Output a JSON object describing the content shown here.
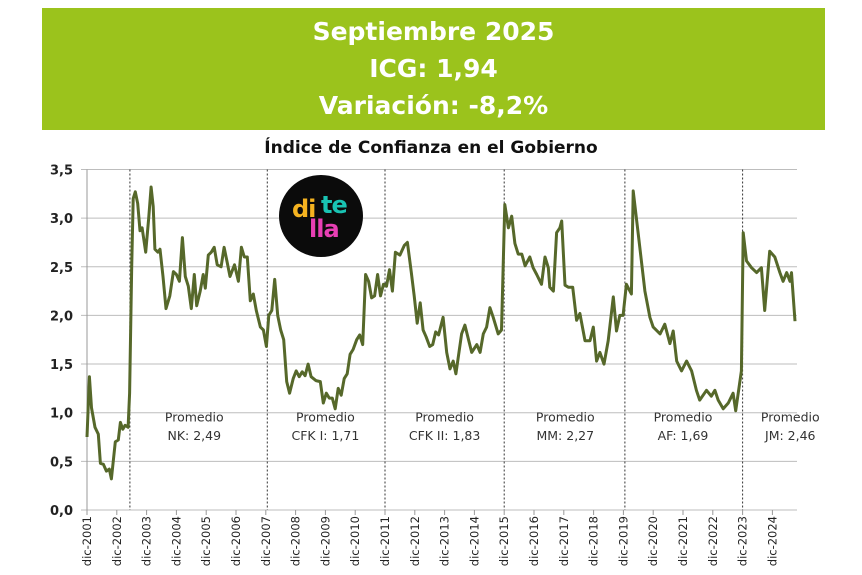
{
  "banner": {
    "line1": "Septiembre 2025",
    "line2": "ICG: 1,94",
    "line3": "Variación: -8,2%"
  },
  "logo": {
    "text1": "di",
    "text2": "te",
    "text3": "lla",
    "colors": [
      "#f5b320",
      "#19c3b3",
      "#e83fb4"
    ]
  },
  "chart_data": {
    "type": "line",
    "title": "Índice de Confianza en el Gobierno",
    "xlabel": "",
    "ylabel": "",
    "ylim": [
      0,
      3.5
    ],
    "yticks": [
      "0,0",
      "0,5",
      "1,0",
      "1,5",
      "2,0",
      "2,5",
      "3,0",
      "3,5"
    ],
    "xticks": [
      "dic-2001",
      "dic-2002",
      "dic-2003",
      "dic-2004",
      "dic-2005",
      "dic-2006",
      "dic-2007",
      "dic-2008",
      "dic-2009",
      "dic-2010",
      "dic-2011",
      "dic-2012",
      "dic-2013",
      "dic-2014",
      "dic-2015",
      "dic-2016",
      "dic-2017",
      "dic-2018",
      "dic-2019",
      "dic-2020",
      "dic-2021",
      "dic-2022",
      "dic-2023",
      "dic-2024"
    ],
    "x_unit": "years since dic-2001",
    "grid": true,
    "line_color": "#56682a",
    "periods": [
      {
        "start": 1.44,
        "label1": "Promedio",
        "label2": "NK: 2,49",
        "center": 3.6
      },
      {
        "start": 6.05,
        "label1": "Promedio",
        "label2": "CFK I: 1,71",
        "center": 8.0
      },
      {
        "start": 10.0,
        "label1": "Promedio",
        "label2": "CFK II: 1,83",
        "center": 12.0
      },
      {
        "start": 14.0,
        "label1": "Promedio",
        "label2": "MM: 2,27",
        "center": 16.05
      },
      {
        "start": 18.05,
        "label1": "Promedio",
        "label2": "AF: 1,69",
        "center": 20.0
      },
      {
        "start": 22.0,
        "label1": "Promedio",
        "label2": "JM: 2,46",
        "center": 23.6
      }
    ],
    "series": [
      {
        "name": "ICG",
        "points": [
          [
            0,
            0.75
          ],
          [
            0.08,
            1.37
          ],
          [
            0.15,
            1.05
          ],
          [
            0.27,
            0.85
          ],
          [
            0.38,
            0.78
          ],
          [
            0.45,
            0.48
          ],
          [
            0.55,
            0.47
          ],
          [
            0.65,
            0.4
          ],
          [
            0.75,
            0.42
          ],
          [
            0.82,
            0.32
          ],
          [
            0.95,
            0.7
          ],
          [
            1.05,
            0.72
          ],
          [
            1.12,
            0.9
          ],
          [
            1.2,
            0.83
          ],
          [
            1.28,
            0.87
          ],
          [
            1.38,
            0.85
          ],
          [
            1.43,
            1.2
          ],
          [
            1.5,
            2.5
          ],
          [
            1.55,
            3.2
          ],
          [
            1.62,
            3.27
          ],
          [
            1.7,
            3.15
          ],
          [
            1.78,
            2.87
          ],
          [
            1.85,
            2.9
          ],
          [
            1.97,
            2.65
          ],
          [
            2.07,
            3.0
          ],
          [
            2.15,
            3.32
          ],
          [
            2.22,
            3.12
          ],
          [
            2.28,
            2.68
          ],
          [
            2.38,
            2.65
          ],
          [
            2.45,
            2.68
          ],
          [
            2.55,
            2.4
          ],
          [
            2.65,
            2.07
          ],
          [
            2.78,
            2.2
          ],
          [
            2.9,
            2.45
          ],
          [
            3.0,
            2.42
          ],
          [
            3.1,
            2.35
          ],
          [
            3.2,
            2.8
          ],
          [
            3.3,
            2.4
          ],
          [
            3.4,
            2.3
          ],
          [
            3.5,
            2.07
          ],
          [
            3.6,
            2.42
          ],
          [
            3.68,
            2.1
          ],
          [
            3.8,
            2.25
          ],
          [
            3.9,
            2.42
          ],
          [
            3.97,
            2.28
          ],
          [
            4.07,
            2.62
          ],
          [
            4.17,
            2.65
          ],
          [
            4.27,
            2.7
          ],
          [
            4.37,
            2.52
          ],
          [
            4.5,
            2.5
          ],
          [
            4.6,
            2.7
          ],
          [
            4.7,
            2.55
          ],
          [
            4.8,
            2.4
          ],
          [
            4.95,
            2.52
          ],
          [
            5.08,
            2.35
          ],
          [
            5.18,
            2.7
          ],
          [
            5.28,
            2.6
          ],
          [
            5.38,
            2.6
          ],
          [
            5.48,
            2.15
          ],
          [
            5.58,
            2.22
          ],
          [
            5.68,
            2.05
          ],
          [
            5.82,
            1.88
          ],
          [
            5.92,
            1.85
          ],
          [
            6.02,
            1.68
          ],
          [
            6.1,
            2.0
          ],
          [
            6.2,
            2.05
          ],
          [
            6.3,
            2.37
          ],
          [
            6.4,
            2.0
          ],
          [
            6.5,
            1.85
          ],
          [
            6.6,
            1.75
          ],
          [
            6.7,
            1.32
          ],
          [
            6.8,
            1.2
          ],
          [
            6.92,
            1.35
          ],
          [
            7.02,
            1.43
          ],
          [
            7.12,
            1.37
          ],
          [
            7.22,
            1.42
          ],
          [
            7.32,
            1.38
          ],
          [
            7.42,
            1.5
          ],
          [
            7.52,
            1.37
          ],
          [
            7.68,
            1.33
          ],
          [
            7.83,
            1.32
          ],
          [
            7.93,
            1.1
          ],
          [
            8.03,
            1.2
          ],
          [
            8.13,
            1.15
          ],
          [
            8.23,
            1.15
          ],
          [
            8.33,
            1.04
          ],
          [
            8.43,
            1.25
          ],
          [
            8.53,
            1.18
          ],
          [
            8.63,
            1.35
          ],
          [
            8.73,
            1.4
          ],
          [
            8.83,
            1.6
          ],
          [
            8.93,
            1.65
          ],
          [
            9.05,
            1.75
          ],
          [
            9.15,
            1.8
          ],
          [
            9.25,
            1.7
          ],
          [
            9.35,
            2.42
          ],
          [
            9.45,
            2.35
          ],
          [
            9.55,
            2.18
          ],
          [
            9.65,
            2.2
          ],
          [
            9.75,
            2.42
          ],
          [
            9.85,
            2.2
          ],
          [
            9.95,
            2.32
          ],
          [
            10.05,
            2.3
          ],
          [
            10.15,
            2.47
          ],
          [
            10.25,
            2.25
          ],
          [
            10.35,
            2.65
          ],
          [
            10.5,
            2.62
          ],
          [
            10.65,
            2.72
          ],
          [
            10.75,
            2.75
          ],
          [
            10.88,
            2.45
          ],
          [
            10.98,
            2.2
          ],
          [
            11.08,
            1.92
          ],
          [
            11.18,
            2.13
          ],
          [
            11.28,
            1.85
          ],
          [
            11.38,
            1.78
          ],
          [
            11.5,
            1.68
          ],
          [
            11.6,
            1.7
          ],
          [
            11.7,
            1.83
          ],
          [
            11.8,
            1.8
          ],
          [
            11.95,
            1.98
          ],
          [
            12.07,
            1.62
          ],
          [
            12.18,
            1.45
          ],
          [
            12.29,
            1.53
          ],
          [
            12.38,
            1.4
          ],
          [
            12.57,
            1.81
          ],
          [
            12.68,
            1.9
          ],
          [
            12.91,
            1.62
          ],
          [
            13.08,
            1.7
          ],
          [
            13.19,
            1.62
          ],
          [
            13.3,
            1.81
          ],
          [
            13.41,
            1.88
          ],
          [
            13.52,
            2.08
          ],
          [
            13.63,
            1.98
          ],
          [
            13.8,
            1.81
          ],
          [
            13.91,
            1.85
          ],
          [
            14.02,
            3.14
          ],
          [
            14.14,
            2.9
          ],
          [
            14.25,
            3.02
          ],
          [
            14.36,
            2.74
          ],
          [
            14.47,
            2.63
          ],
          [
            14.59,
            2.63
          ],
          [
            14.7,
            2.51
          ],
          [
            14.86,
            2.6
          ],
          [
            14.97,
            2.49
          ],
          [
            15.09,
            2.42
          ],
          [
            15.25,
            2.32
          ],
          [
            15.37,
            2.6
          ],
          [
            15.48,
            2.49
          ],
          [
            15.53,
            2.29
          ],
          [
            15.65,
            2.25
          ],
          [
            15.76,
            2.85
          ],
          [
            15.87,
            2.9
          ],
          [
            15.93,
            2.97
          ],
          [
            16.04,
            2.31
          ],
          [
            16.15,
            2.29
          ],
          [
            16.3,
            2.29
          ],
          [
            16.43,
            1.95
          ],
          [
            16.54,
            2.02
          ],
          [
            16.71,
            1.74
          ],
          [
            16.88,
            1.74
          ],
          [
            16.99,
            1.88
          ],
          [
            17.1,
            1.53
          ],
          [
            17.21,
            1.62
          ],
          [
            17.35,
            1.5
          ],
          [
            17.49,
            1.74
          ],
          [
            17.66,
            2.19
          ],
          [
            17.77,
            1.84
          ],
          [
            17.88,
            2.0
          ],
          [
            17.99,
            2.0
          ],
          [
            18.1,
            2.32
          ],
          [
            18.27,
            2.22
          ],
          [
            18.33,
            3.28
          ],
          [
            18.55,
            2.7
          ],
          [
            18.72,
            2.25
          ],
          [
            18.89,
            1.98
          ],
          [
            19.0,
            1.88
          ],
          [
            19.23,
            1.81
          ],
          [
            19.39,
            1.91
          ],
          [
            19.56,
            1.71
          ],
          [
            19.67,
            1.84
          ],
          [
            19.79,
            1.53
          ],
          [
            19.95,
            1.43
          ],
          [
            20.12,
            1.53
          ],
          [
            20.29,
            1.43
          ],
          [
            20.45,
            1.23
          ],
          [
            20.56,
            1.13
          ],
          [
            20.79,
            1.23
          ],
          [
            20.95,
            1.17
          ],
          [
            21.07,
            1.23
          ],
          [
            21.18,
            1.13
          ],
          [
            21.35,
            1.04
          ],
          [
            21.52,
            1.1
          ],
          [
            21.68,
            1.2
          ],
          [
            21.77,
            1.02
          ],
          [
            21.96,
            1.43
          ],
          [
            22.02,
            2.85
          ],
          [
            22.13,
            2.56
          ],
          [
            22.3,
            2.49
          ],
          [
            22.47,
            2.44
          ],
          [
            22.63,
            2.49
          ],
          [
            22.74,
            2.05
          ],
          [
            22.91,
            2.66
          ],
          [
            23.08,
            2.6
          ],
          [
            23.25,
            2.44
          ],
          [
            23.36,
            2.35
          ],
          [
            23.48,
            2.44
          ],
          [
            23.59,
            2.35
          ],
          [
            23.64,
            2.44
          ],
          [
            23.76,
            1.94
          ]
        ]
      }
    ]
  }
}
